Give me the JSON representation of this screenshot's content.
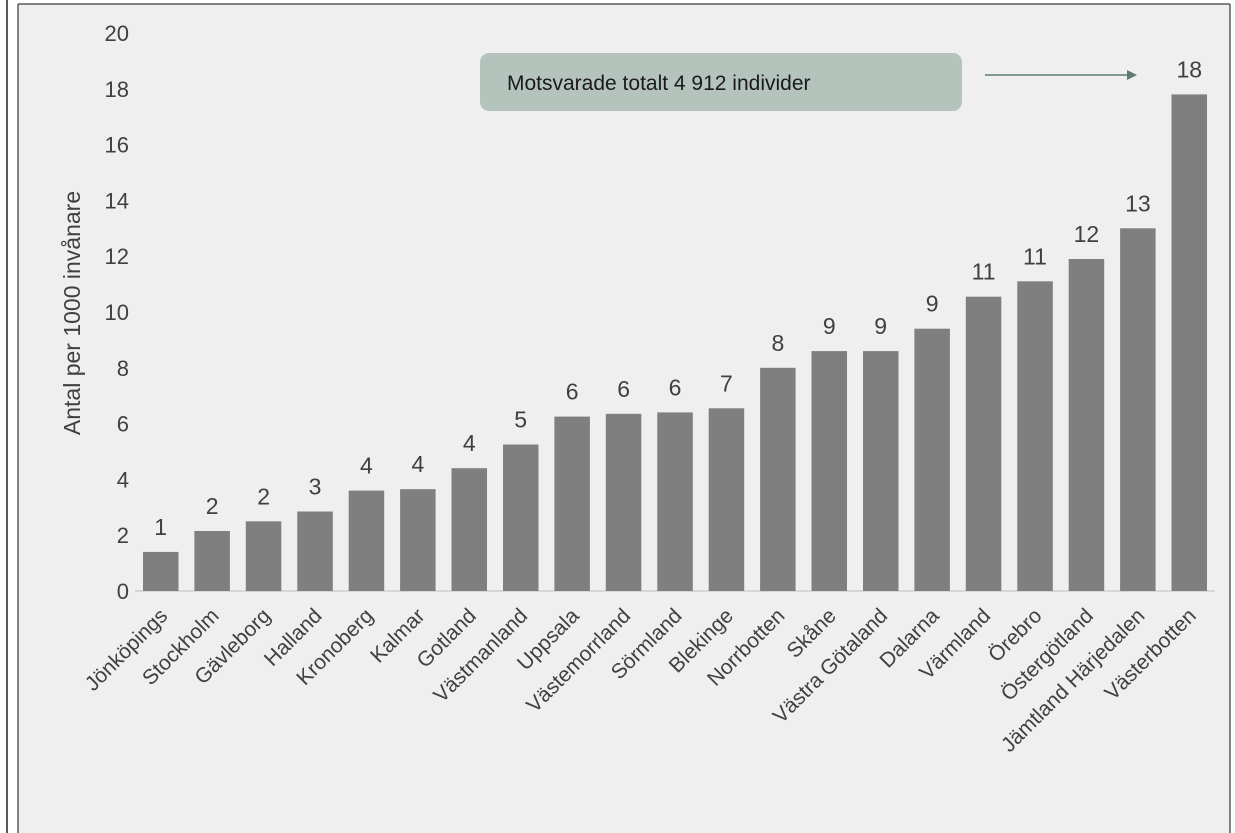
{
  "chart_data": {
    "type": "bar",
    "title": "",
    "xlabel": "",
    "ylabel": "Antal per 1000 invånare",
    "ylim": [
      0,
      20
    ],
    "yticks": [
      0,
      2,
      4,
      6,
      8,
      10,
      12,
      14,
      16,
      18,
      20
    ],
    "grid": false,
    "categories": [
      "Jönköpings",
      "Stockholm",
      "Gävleborg",
      "Halland",
      "Kronoberg",
      "Kalmar",
      "Gotland",
      "Västmanland",
      "Uppsala",
      "Västemorrland",
      "Sörmland",
      "Blekinge",
      "Norrbotten",
      "Skåne",
      "Västra Götaland",
      "Dalarna",
      "Värmland",
      "Örebro",
      "Östergötland",
      "Jämtland Härjedalen",
      "Västerbotten"
    ],
    "values": [
      1.4,
      2.15,
      2.5,
      2.85,
      3.6,
      3.65,
      4.4,
      5.25,
      6.25,
      6.35,
      6.4,
      6.55,
      8.0,
      8.6,
      8.6,
      9.4,
      10.55,
      11.1,
      11.9,
      13.0,
      17.8
    ],
    "data_labels": [
      "1",
      "2",
      "2",
      "3",
      "4",
      "4",
      "4",
      "5",
      "6",
      "6",
      "6",
      "7",
      "8",
      "9",
      "9",
      "9",
      "11",
      "11",
      "12",
      "13",
      "18"
    ],
    "bar_color": "#7f7f7f",
    "annotation": {
      "text": "Motsvarade totalt 4 912 individer",
      "fill_color": "#b4c4bd",
      "arrow_color": "#5f7b74",
      "points_to": "Västerbotten"
    }
  },
  "colors": {
    "plot_background": "#efefef",
    "frame": "#5a5a5a",
    "text": "#404040"
  }
}
